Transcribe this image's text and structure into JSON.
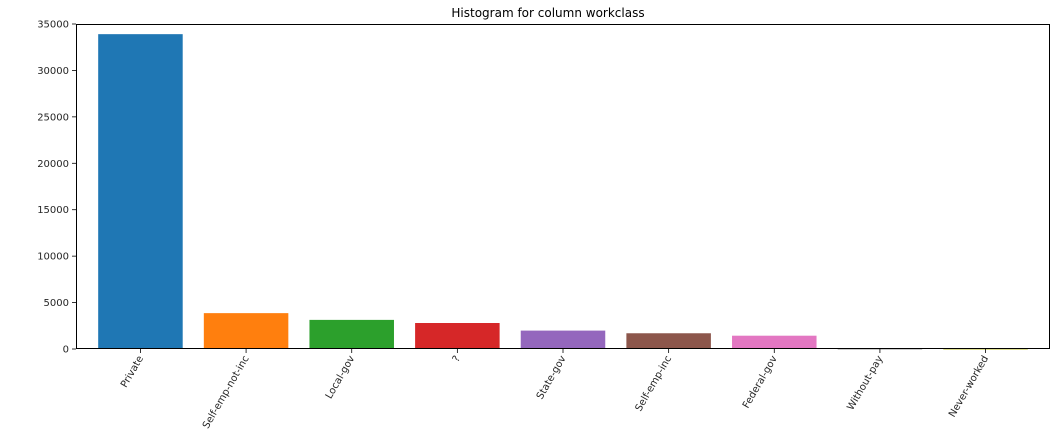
{
  "chart_data": {
    "type": "bar",
    "title": "Histogram for column workclass",
    "xlabel": "",
    "ylabel": "",
    "categories": [
      "Private",
      "Self-emp-not-inc",
      "Local-gov",
      "?",
      "State-gov",
      "Self-emp-inc",
      "Federal-gov",
      "Without-pay",
      "Never-worked"
    ],
    "values": [
      33906,
      3862,
      3136,
      2799,
      1981,
      1695,
      1432,
      21,
      10
    ],
    "colors": [
      "#1f77b4",
      "#ff7f0e",
      "#2ca02c",
      "#d62728",
      "#9467bd",
      "#8c564b",
      "#e377c2",
      "#7f7f7f",
      "#bcbd22"
    ],
    "ylim": [
      0,
      35000
    ],
    "yticks": [
      0,
      5000,
      10000,
      15000,
      20000,
      25000,
      30000,
      35000
    ],
    "ytick_labels": [
      "0",
      "5000",
      "10000",
      "15000",
      "20000",
      "25000",
      "30000",
      "35000"
    ],
    "xtick_rotation": 60,
    "grid": false,
    "legend": "none"
  }
}
